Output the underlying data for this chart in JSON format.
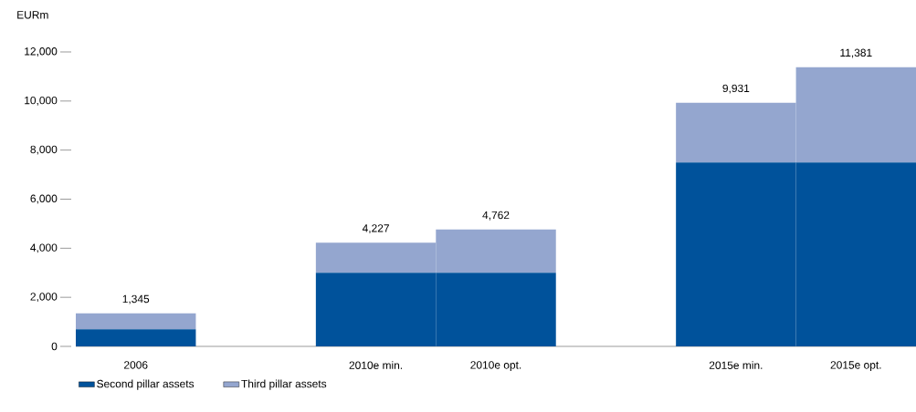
{
  "chart_data": {
    "type": "bar",
    "stacked": true,
    "ylabel": "EURm",
    "categories": [
      "2006",
      null,
      "2010e min.",
      "2010e opt.",
      null,
      "2015e min.",
      "2015e opt."
    ],
    "series": [
      {
        "name": "Second pillar assets",
        "color": "#00529b",
        "values": [
          700,
          null,
          3000,
          3000,
          null,
          7500,
          7500
        ]
      },
      {
        "name": "Third pillar assets",
        "color": "#94a6cf",
        "values": [
          645,
          null,
          1227,
          1762,
          null,
          2431,
          3881
        ]
      }
    ],
    "totals": [
      "1,345",
      null,
      "4,227",
      "4,762",
      null,
      "9,931",
      "11,381"
    ],
    "ylim": [
      0,
      12000
    ],
    "yticks": [
      {
        "value": 0,
        "label": "0"
      },
      {
        "value": 2000,
        "label": "2,000"
      },
      {
        "value": 4000,
        "label": "4,000"
      },
      {
        "value": 6000,
        "label": "6,000"
      },
      {
        "value": 8000,
        "label": "8,000"
      },
      {
        "value": 10000,
        "label": "10,000"
      },
      {
        "value": 12000,
        "label": "12,000"
      }
    ],
    "grid": false,
    "legend": "bottom"
  }
}
